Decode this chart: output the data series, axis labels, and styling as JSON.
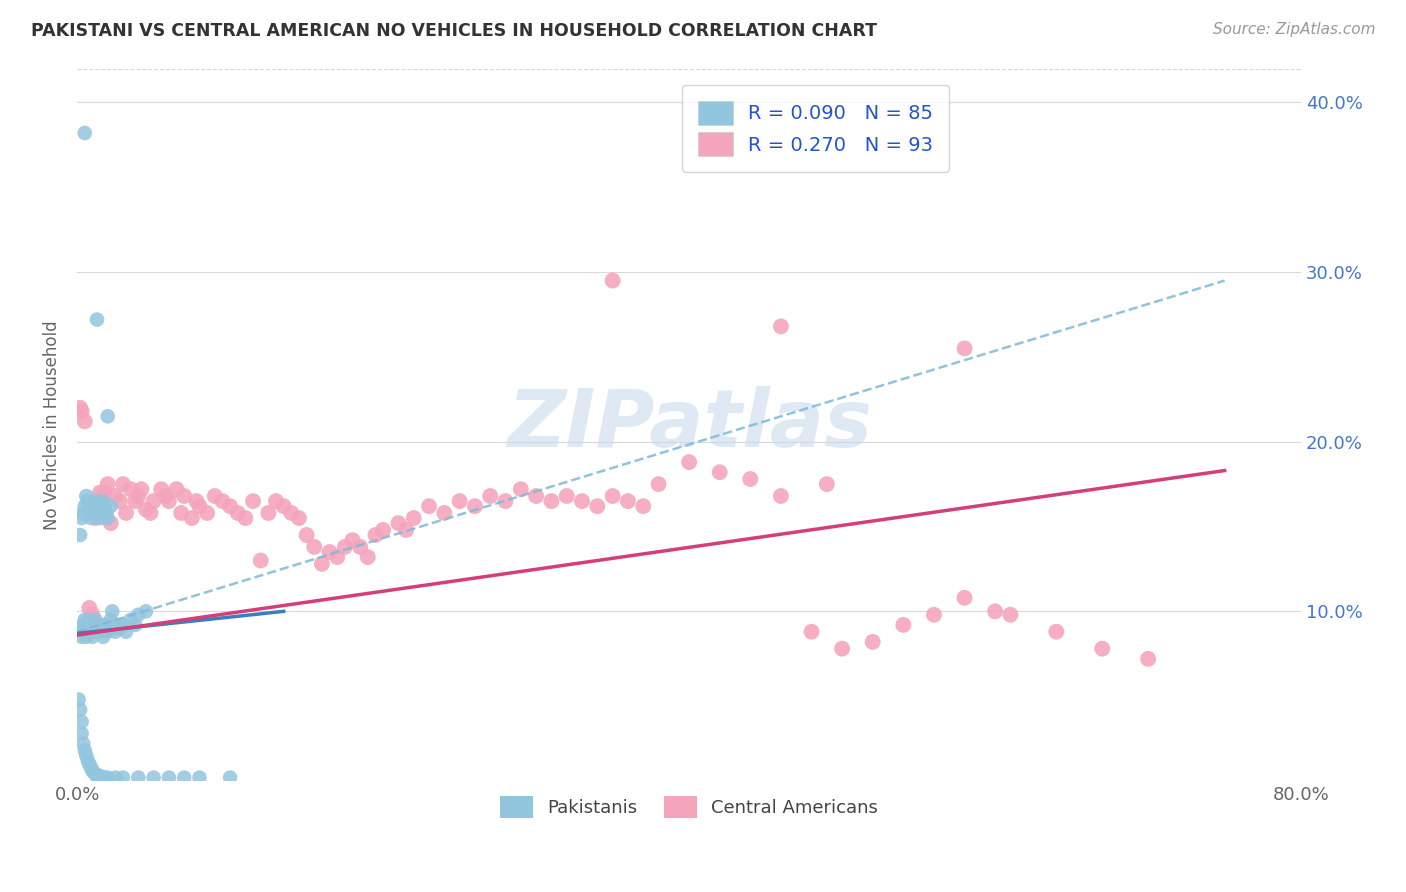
{
  "title": "PAKISTANI VS CENTRAL AMERICAN NO VEHICLES IN HOUSEHOLD CORRELATION CHART",
  "source": "Source: ZipAtlas.com",
  "ylabel": "No Vehicles in Household",
  "xlim": [
    0.0,
    0.8
  ],
  "ylim": [
    0.0,
    0.42
  ],
  "legend_blue_label": "R = 0.090   N = 85",
  "legend_pink_label": "R = 0.270   N = 93",
  "blue_color": "#92c5de",
  "pink_color": "#f4a5bc",
  "blue_line_color": "#3a7ebf",
  "pink_line_color": "#d43f7a",
  "dashed_line_color": "#7fb9d8",
  "watermark": "ZIPatlas",
  "background_color": "#ffffff",
  "grid_color": "#d8d8d8",
  "legend_text_color": "#2255cc",
  "blue_line_x0": 0.0,
  "blue_line_x1": 0.135,
  "blue_line_y0": 0.087,
  "blue_line_y1": 0.1,
  "pink_line_x0": 0.0,
  "pink_line_x1": 0.75,
  "pink_line_y0": 0.086,
  "pink_line_y1": 0.183,
  "dashed_line_x0": 0.0,
  "dashed_line_x1": 0.75,
  "dashed_line_y0": 0.088,
  "dashed_line_y1": 0.295,
  "pakistanis_x": [
    0.005,
    0.013,
    0.02,
    0.003,
    0.003,
    0.004,
    0.005,
    0.005,
    0.006,
    0.006,
    0.007,
    0.007,
    0.008,
    0.008,
    0.009,
    0.01,
    0.01,
    0.011,
    0.012,
    0.013,
    0.014,
    0.015,
    0.016,
    0.017,
    0.018,
    0.019,
    0.02,
    0.021,
    0.022,
    0.023,
    0.024,
    0.025,
    0.026,
    0.028,
    0.03,
    0.032,
    0.035,
    0.038,
    0.04,
    0.045,
    0.002,
    0.003,
    0.004,
    0.005,
    0.006,
    0.007,
    0.008,
    0.009,
    0.01,
    0.011,
    0.012,
    0.013,
    0.014,
    0.015,
    0.016,
    0.017,
    0.018,
    0.019,
    0.02,
    0.022,
    0.001,
    0.002,
    0.003,
    0.003,
    0.004,
    0.005,
    0.006,
    0.007,
    0.008,
    0.009,
    0.01,
    0.011,
    0.012,
    0.013,
    0.015,
    0.018,
    0.02,
    0.025,
    0.03,
    0.04,
    0.05,
    0.06,
    0.07,
    0.08,
    0.1
  ],
  "pakistanis_y": [
    0.382,
    0.272,
    0.215,
    0.085,
    0.09,
    0.092,
    0.088,
    0.095,
    0.09,
    0.085,
    0.092,
    0.088,
    0.095,
    0.09,
    0.088,
    0.085,
    0.092,
    0.09,
    0.095,
    0.088,
    0.092,
    0.09,
    0.088,
    0.085,
    0.092,
    0.09,
    0.088,
    0.092,
    0.095,
    0.1,
    0.09,
    0.088,
    0.092,
    0.09,
    0.092,
    0.088,
    0.095,
    0.092,
    0.098,
    0.1,
    0.145,
    0.155,
    0.158,
    0.162,
    0.168,
    0.165,
    0.16,
    0.155,
    0.162,
    0.158,
    0.165,
    0.162,
    0.158,
    0.155,
    0.162,
    0.165,
    0.162,
    0.158,
    0.155,
    0.162,
    0.048,
    0.042,
    0.035,
    0.028,
    0.022,
    0.018,
    0.015,
    0.012,
    0.01,
    0.008,
    0.006,
    0.005,
    0.004,
    0.003,
    0.003,
    0.002,
    0.002,
    0.002,
    0.002,
    0.002,
    0.002,
    0.002,
    0.002,
    0.002,
    0.002
  ],
  "central_americans_x": [
    0.002,
    0.003,
    0.005,
    0.008,
    0.01,
    0.012,
    0.015,
    0.016,
    0.018,
    0.02,
    0.022,
    0.025,
    0.028,
    0.03,
    0.032,
    0.035,
    0.038,
    0.04,
    0.042,
    0.045,
    0.048,
    0.05,
    0.055,
    0.058,
    0.06,
    0.065,
    0.068,
    0.07,
    0.075,
    0.078,
    0.08,
    0.085,
    0.09,
    0.095,
    0.1,
    0.105,
    0.11,
    0.115,
    0.12,
    0.125,
    0.13,
    0.135,
    0.14,
    0.145,
    0.15,
    0.155,
    0.16,
    0.165,
    0.17,
    0.175,
    0.18,
    0.185,
    0.19,
    0.195,
    0.2,
    0.21,
    0.215,
    0.22,
    0.23,
    0.24,
    0.25,
    0.26,
    0.27,
    0.28,
    0.29,
    0.3,
    0.31,
    0.32,
    0.33,
    0.34,
    0.35,
    0.36,
    0.37,
    0.38,
    0.4,
    0.42,
    0.44,
    0.46,
    0.48,
    0.5,
    0.52,
    0.54,
    0.56,
    0.58,
    0.61,
    0.64,
    0.67,
    0.7,
    0.49,
    0.6,
    0.35,
    0.46,
    0.58
  ],
  "central_americans_y": [
    0.22,
    0.218,
    0.212,
    0.102,
    0.098,
    0.155,
    0.17,
    0.165,
    0.17,
    0.175,
    0.152,
    0.168,
    0.165,
    0.175,
    0.158,
    0.172,
    0.165,
    0.168,
    0.172,
    0.16,
    0.158,
    0.165,
    0.172,
    0.168,
    0.165,
    0.172,
    0.158,
    0.168,
    0.155,
    0.165,
    0.162,
    0.158,
    0.168,
    0.165,
    0.162,
    0.158,
    0.155,
    0.165,
    0.13,
    0.158,
    0.165,
    0.162,
    0.158,
    0.155,
    0.145,
    0.138,
    0.128,
    0.135,
    0.132,
    0.138,
    0.142,
    0.138,
    0.132,
    0.145,
    0.148,
    0.152,
    0.148,
    0.155,
    0.162,
    0.158,
    0.165,
    0.162,
    0.168,
    0.165,
    0.172,
    0.168,
    0.165,
    0.168,
    0.165,
    0.162,
    0.168,
    0.165,
    0.162,
    0.175,
    0.188,
    0.182,
    0.178,
    0.168,
    0.088,
    0.078,
    0.082,
    0.092,
    0.098,
    0.108,
    0.098,
    0.088,
    0.078,
    0.072,
    0.175,
    0.1,
    0.295,
    0.268,
    0.255
  ]
}
